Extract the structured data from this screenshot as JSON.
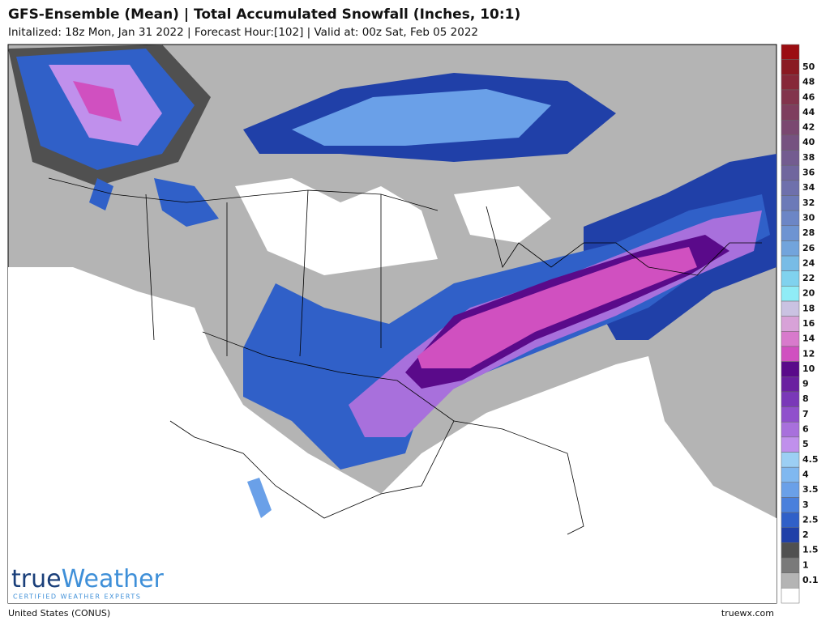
{
  "header": {
    "title": "GFS-Ensemble (Mean) | Total Accumulated Snowfall (Inches, 10:1)",
    "subtitle": "Initalized: 18z Mon, Jan 31 2022 | Forecast Hour:[102] | Valid at: 00z Sat, Feb 05 2022"
  },
  "legend": [
    {
      "label": null,
      "color": "#9b0d12"
    },
    {
      "label": 50,
      "color": "#8a1a22"
    },
    {
      "label": 48,
      "color": "#862838"
    },
    {
      "label": 46,
      "color": "#82344c"
    },
    {
      "label": 44,
      "color": "#7e3e5e"
    },
    {
      "label": 42,
      "color": "#7a4870"
    },
    {
      "label": 40,
      "color": "#765280"
    },
    {
      "label": 38,
      "color": "#735c90"
    },
    {
      "label": 36,
      "color": "#70669e"
    },
    {
      "label": 34,
      "color": "#6e70ac"
    },
    {
      "label": 32,
      "color": "#6c7ab8"
    },
    {
      "label": 30,
      "color": "#6c86c6"
    },
    {
      "label": 28,
      "color": "#6e94d2"
    },
    {
      "label": 26,
      "color": "#72a4dc"
    },
    {
      "label": 24,
      "color": "#78bce6"
    },
    {
      "label": 22,
      "color": "#80d2ee"
    },
    {
      "label": 20,
      "color": "#90ecf6"
    },
    {
      "label": 18,
      "color": "#cac2e2"
    },
    {
      "label": 16,
      "color": "#d8a2d8"
    },
    {
      "label": 14,
      "color": "#d87acc"
    },
    {
      "label": 12,
      "color": "#d050c0"
    },
    {
      "label": 10,
      "color": "#5a0a8a"
    },
    {
      "label": 9,
      "color": "#6a20a0"
    },
    {
      "label": 8,
      "color": "#7a38b8"
    },
    {
      "label": 7,
      "color": "#9050cc"
    },
    {
      "label": 6,
      "color": "#a870dc"
    },
    {
      "label": 5,
      "color": "#c090ec"
    },
    {
      "label": 4.5,
      "color": "#9ccff4"
    },
    {
      "label": 4,
      "color": "#80b8f0"
    },
    {
      "label": 3.5,
      "color": "#6aa0e8"
    },
    {
      "label": 3,
      "color": "#4a80dc"
    },
    {
      "label": 2.5,
      "color": "#3060c8"
    },
    {
      "label": 2,
      "color": "#2040a8"
    },
    {
      "label": 1.5,
      "color": "#505050"
    },
    {
      "label": 1,
      "color": "#7a7a7a"
    },
    {
      "label": 0.1,
      "color": "#b4b4b4"
    },
    {
      "label": null,
      "color": "#ffffff"
    }
  ],
  "logo": {
    "parts": [
      "true",
      "Weather"
    ],
    "tagline": "CERTIFIED WEATHER EXPERTS"
  },
  "footer": {
    "region": "United States (CONUS)",
    "site": "truewx.com"
  }
}
